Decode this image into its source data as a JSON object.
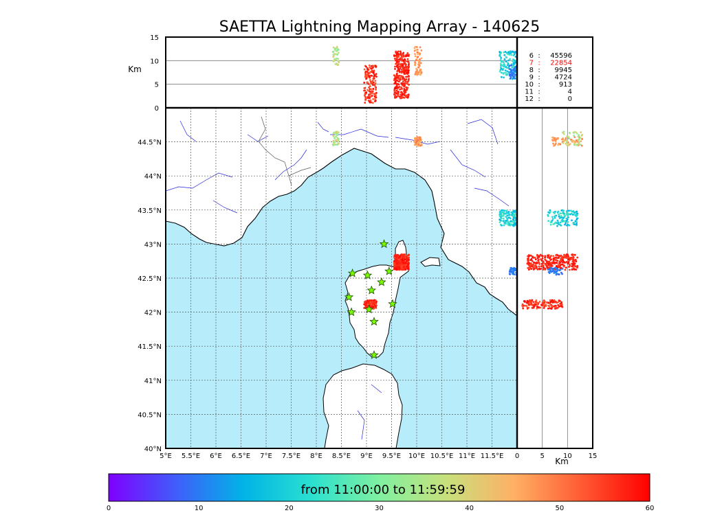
{
  "chart_data": {
    "type": "scatter",
    "title": "SAETTA Lightning Mapping Array - 140625",
    "colors": {
      "sea": "#b7ecfb",
      "coast": "#000000",
      "rivers": "#2222dd",
      "borders": "#555555",
      "grid": "#555555",
      "station": "#7cfc00",
      "scale_stops": [
        "#7f00ff",
        "#3f5efb",
        "#00b4e6",
        "#2be0d0",
        "#7ff0a0",
        "#c8e07c",
        "#ffb064",
        "#ff5a32",
        "#ff0000"
      ]
    },
    "top_panel": {
      "ylabel": "Km",
      "ylim": [
        0,
        15
      ],
      "yticks": [
        "0",
        "5",
        "10",
        "15"
      ],
      "hlines": [
        5,
        10
      ]
    },
    "map": {
      "xlim": [
        5,
        12
      ],
      "ylim": [
        40,
        45
      ],
      "xticks": [
        "5°E",
        "5.5°E",
        "6°E",
        "6.5°E",
        "7°E",
        "7.5°E",
        "8°E",
        "8.5°E",
        "9°E",
        "9.5°E",
        "10°E",
        "10.5°E",
        "11°E",
        "11.5°E"
      ],
      "xtick_values": [
        5,
        5.5,
        6,
        6.5,
        7,
        7.5,
        8,
        8.5,
        9,
        9.5,
        10,
        10.5,
        11,
        11.5
      ],
      "yticks": [
        "40°N",
        "40.5°N",
        "41°N",
        "41.5°N",
        "42°N",
        "42.5°N",
        "43°N",
        "43.5°N",
        "44°N",
        "44.5°N"
      ],
      "ytick_values": [
        40,
        40.5,
        41,
        41.5,
        42,
        42.5,
        43,
        43.5,
        44,
        44.5
      ]
    },
    "side_panel": {
      "xlabel": "Km",
      "xlim": [
        0,
        15
      ],
      "xticks": [
        "0",
        "5",
        "10",
        "15"
      ],
      "vlines": [
        5,
        10
      ]
    },
    "stations": [
      {
        "lon": 9.35,
        "lat": 43.0
      },
      {
        "lon": 8.72,
        "lat": 42.57
      },
      {
        "lon": 9.02,
        "lat": 42.54
      },
      {
        "lon": 9.45,
        "lat": 42.6
      },
      {
        "lon": 9.3,
        "lat": 42.44
      },
      {
        "lon": 9.1,
        "lat": 42.32
      },
      {
        "lon": 8.65,
        "lat": 42.22
      },
      {
        "lon": 9.52,
        "lat": 42.12
      },
      {
        "lon": 9.05,
        "lat": 42.04
      },
      {
        "lon": 8.7,
        "lat": 42.0
      },
      {
        "lon": 9.15,
        "lat": 41.86
      },
      {
        "lon": 9.15,
        "lat": 41.37
      }
    ],
    "clusters": [
      {
        "lon": [
          9.55,
          9.85
        ],
        "lat": [
          42.62,
          42.85
        ],
        "alt": [
          2,
          12
        ],
        "time": [
          54,
          60
        ],
        "n": 320
      },
      {
        "lon": [
          8.95,
          9.2
        ],
        "lat": [
          42.05,
          42.18
        ],
        "alt": [
          1,
          9
        ],
        "time": [
          52,
          60
        ],
        "n": 150
      },
      {
        "lon": [
          9.95,
          10.1
        ],
        "lat": [
          44.44,
          44.57
        ],
        "alt": [
          7,
          13
        ],
        "time": [
          44,
          50
        ],
        "n": 60
      },
      {
        "lon": [
          8.33,
          8.45
        ],
        "lat": [
          44.45,
          44.65
        ],
        "alt": [
          9,
          13
        ],
        "time": [
          30,
          42
        ],
        "n": 40
      },
      {
        "lon": [
          11.65,
          11.98
        ],
        "lat": [
          43.25,
          43.5
        ],
        "alt": [
          6,
          12
        ],
        "time": [
          14,
          26
        ],
        "n": 120
      },
      {
        "lon": [
          11.85,
          11.99
        ],
        "lat": [
          42.55,
          42.65
        ],
        "alt": [
          6,
          9
        ],
        "time": [
          8,
          12
        ],
        "n": 40
      }
    ],
    "stats": [
      {
        "k": "6",
        "v": "45596",
        "highlight": false
      },
      {
        "k": "7",
        "v": "22854",
        "highlight": true
      },
      {
        "k": "8",
        "v": "9945",
        "highlight": false
      },
      {
        "k": "9",
        "v": "4724",
        "highlight": false
      },
      {
        "k": "10",
        "v": "913",
        "highlight": false
      },
      {
        "k": "11",
        "v": "4",
        "highlight": false
      },
      {
        "k": "12",
        "v": "0",
        "highlight": false
      }
    ],
    "colorbar": {
      "range": [
        0,
        60
      ],
      "ticks": [
        "0",
        "10",
        "20",
        "30",
        "40",
        "50",
        "60"
      ],
      "label": "from 11:00:00 to 11:59:59"
    }
  }
}
